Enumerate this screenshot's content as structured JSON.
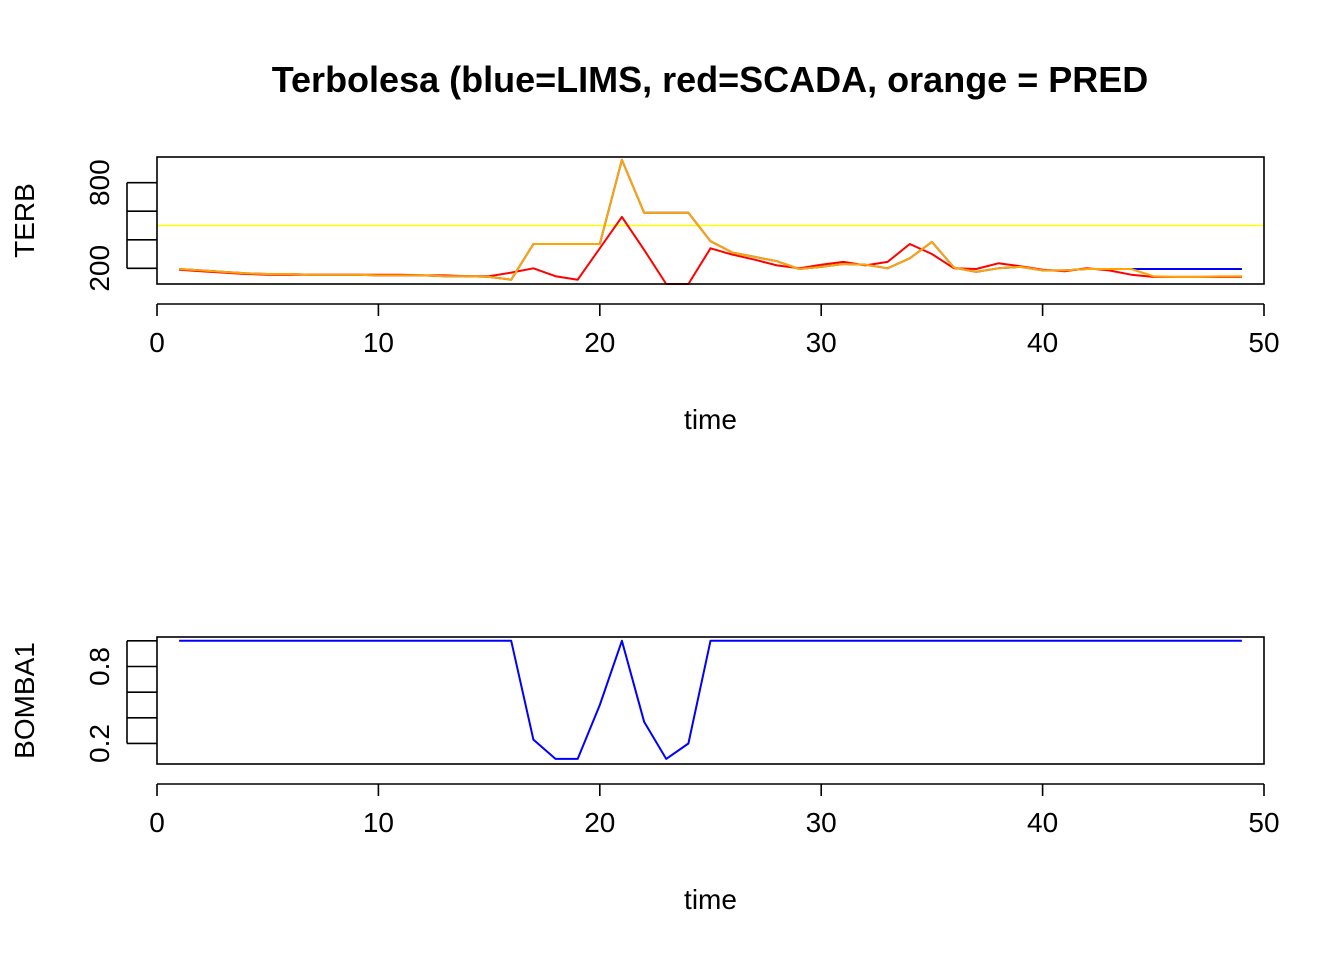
{
  "title": "Terbolesa (blue=LIMS, red=SCADA, orange = PRED",
  "colors": {
    "lims": "#0000ff",
    "scada": "#ff0000",
    "pred": "#ffa500",
    "threshold": "#ffff00"
  },
  "chart_data": [
    {
      "type": "line",
      "title": "Terbolesa (blue=LIMS, red=SCADA, orange = PRED",
      "xlabel": "time",
      "ylabel": "TERB",
      "xlim": [
        0,
        50
      ],
      "ylim": [
        90,
        980
      ],
      "x_ticks": [
        0,
        10,
        20,
        30,
        40,
        50
      ],
      "y_ticks": [
        200,
        400,
        600,
        800
      ],
      "y_tick_labels": [
        {
          "value": 200,
          "label": "200"
        },
        {
          "value": 800,
          "label": "800"
        }
      ],
      "threshold": 500,
      "x": [
        1,
        2,
        3,
        4,
        5,
        6,
        7,
        8,
        9,
        10,
        11,
        12,
        13,
        14,
        15,
        16,
        17,
        18,
        19,
        20,
        21,
        22,
        23,
        24,
        25,
        26,
        27,
        28,
        29,
        30,
        31,
        32,
        33,
        34,
        35,
        36,
        37,
        38,
        39,
        40,
        41,
        42,
        43,
        44,
        45,
        46,
        47,
        48,
        49
      ],
      "series": [
        {
          "color_key": "lims",
          "values": [
            195,
            185,
            175,
            165,
            160,
            160,
            155,
            155,
            155,
            150,
            150,
            150,
            145,
            145,
            140,
            120,
            370,
            370,
            370,
            370,
            960,
            590,
            590,
            590,
            390,
            310,
            280,
            250,
            195,
            210,
            230,
            225,
            200,
            270,
            385,
            205,
            175,
            200,
            210,
            185,
            185,
            195,
            195,
            195,
            195,
            195,
            195,
            195,
            195
          ]
        },
        {
          "color_key": "scada",
          "values": [
            190,
            180,
            170,
            160,
            155,
            155,
            155,
            155,
            155,
            155,
            155,
            150,
            150,
            145,
            145,
            170,
            200,
            145,
            120,
            340,
            560,
            330,
            90,
            90,
            340,
            295,
            260,
            220,
            200,
            225,
            245,
            220,
            245,
            370,
            300,
            200,
            195,
            235,
            215,
            190,
            180,
            200,
            185,
            155,
            140,
            140,
            140,
            140,
            140
          ]
        },
        {
          "color_key": "pred",
          "values": [
            195,
            185,
            175,
            165,
            160,
            160,
            155,
            155,
            155,
            150,
            150,
            150,
            145,
            145,
            140,
            120,
            370,
            370,
            370,
            370,
            960,
            590,
            590,
            590,
            390,
            310,
            280,
            250,
            195,
            210,
            230,
            225,
            200,
            270,
            385,
            205,
            175,
            200,
            210,
            185,
            185,
            195,
            195,
            195,
            145,
            140,
            140,
            145,
            145
          ]
        }
      ]
    },
    {
      "type": "line",
      "title": "",
      "xlabel": "time",
      "ylabel": "BOMBA1",
      "xlim": [
        0,
        50
      ],
      "ylim": [
        0.04,
        1.03
      ],
      "x_ticks": [
        0,
        10,
        20,
        30,
        40,
        50
      ],
      "y_ticks": [
        0.2,
        0.4,
        0.6,
        0.8,
        1.0
      ],
      "y_tick_labels": [
        {
          "value": 0.2,
          "label": "0.2"
        },
        {
          "value": 0.8,
          "label": "0.8"
        }
      ],
      "x": [
        1,
        2,
        3,
        4,
        5,
        6,
        7,
        8,
        9,
        10,
        11,
        12,
        13,
        14,
        15,
        16,
        17,
        18,
        19,
        20,
        21,
        22,
        23,
        24,
        25,
        26,
        27,
        28,
        29,
        30,
        31,
        32,
        33,
        34,
        35,
        36,
        37,
        38,
        39,
        40,
        41,
        42,
        43,
        44,
        45,
        46,
        47,
        48,
        49
      ],
      "series": [
        {
          "color_key": "lims",
          "values": [
            1,
            1,
            1,
            1,
            1,
            1,
            1,
            1,
            1,
            1,
            1,
            1,
            1,
            1,
            1,
            1,
            0.23,
            0.08,
            0.08,
            0.5,
            1,
            0.37,
            0.08,
            0.2,
            1,
            1,
            1,
            1,
            1,
            1,
            1,
            1,
            1,
            1,
            1,
            1,
            1,
            1,
            1,
            1,
            1,
            1,
            1,
            1,
            1,
            1,
            1,
            1,
            1
          ]
        }
      ]
    }
  ]
}
